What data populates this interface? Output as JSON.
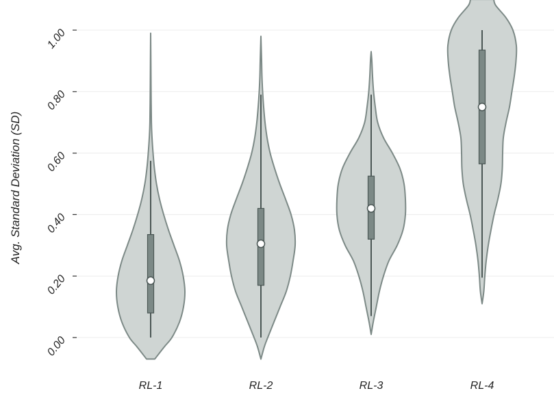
{
  "chart_data": {
    "type": "violin",
    "title": "",
    "xlabel": "",
    "ylabel": "Avg. Standard Deviation (SD)",
    "ylim": [
      0,
      1
    ],
    "yticks": [
      "0.00",
      "0.20",
      "0.40",
      "0.60",
      "0.80",
      "1.00"
    ],
    "ytick_values": [
      0,
      0.2,
      0.4,
      0.6,
      0.8,
      1.0
    ],
    "grid": true,
    "colors": {
      "violin_fill": "#cfd5d3",
      "violin_stroke": "#7c8986",
      "box_fill": "#7c8986",
      "box_stroke": "#4a5654",
      "whisker": "#4a5654",
      "median_fill": "#ffffff",
      "grid": "#ececec"
    },
    "categories": [
      "RL-1",
      "RL-2",
      "RL-3",
      "RL-4"
    ],
    "violins": [
      {
        "category": "RL-1",
        "min": 0.0,
        "q1": 0.08,
        "median": 0.185,
        "q3": 0.335,
        "max": 0.575,
        "density": [
          [
            -0.07,
            0.12
          ],
          [
            -0.03,
            0.4
          ],
          [
            0.0,
            0.62
          ],
          [
            0.05,
            0.84
          ],
          [
            0.1,
            0.96
          ],
          [
            0.15,
            1.0
          ],
          [
            0.2,
            0.95
          ],
          [
            0.25,
            0.84
          ],
          [
            0.3,
            0.68
          ],
          [
            0.35,
            0.52
          ],
          [
            0.4,
            0.38
          ],
          [
            0.45,
            0.26
          ],
          [
            0.5,
            0.17
          ],
          [
            0.55,
            0.11
          ],
          [
            0.6,
            0.07
          ],
          [
            0.65,
            0.04
          ],
          [
            0.7,
            0.022
          ],
          [
            0.8,
            0.012
          ],
          [
            0.9,
            0.006
          ],
          [
            0.99,
            0.0
          ]
        ]
      },
      {
        "category": "RL-2",
        "min": 0.0,
        "q1": 0.17,
        "median": 0.305,
        "q3": 0.42,
        "max": 0.79,
        "density": [
          [
            -0.07,
            0.0
          ],
          [
            -0.03,
            0.1
          ],
          [
            0.0,
            0.2
          ],
          [
            0.05,
            0.38
          ],
          [
            0.1,
            0.56
          ],
          [
            0.15,
            0.74
          ],
          [
            0.2,
            0.86
          ],
          [
            0.25,
            0.94
          ],
          [
            0.3,
            1.0
          ],
          [
            0.35,
            0.98
          ],
          [
            0.4,
            0.88
          ],
          [
            0.45,
            0.72
          ],
          [
            0.5,
            0.55
          ],
          [
            0.55,
            0.4
          ],
          [
            0.6,
            0.27
          ],
          [
            0.65,
            0.18
          ],
          [
            0.7,
            0.12
          ],
          [
            0.75,
            0.08
          ],
          [
            0.8,
            0.05
          ],
          [
            0.85,
            0.03
          ],
          [
            0.9,
            0.02
          ],
          [
            0.98,
            0.0
          ]
        ]
      },
      {
        "category": "RL-3",
        "min": 0.07,
        "q1": 0.32,
        "median": 0.42,
        "q3": 0.525,
        "max": 0.79,
        "density": [
          [
            0.01,
            0.0
          ],
          [
            0.05,
            0.06
          ],
          [
            0.1,
            0.15
          ],
          [
            0.15,
            0.24
          ],
          [
            0.2,
            0.36
          ],
          [
            0.25,
            0.52
          ],
          [
            0.3,
            0.76
          ],
          [
            0.35,
            0.93
          ],
          [
            0.4,
            1.0
          ],
          [
            0.45,
            1.0
          ],
          [
            0.5,
            0.96
          ],
          [
            0.55,
            0.84
          ],
          [
            0.6,
            0.62
          ],
          [
            0.65,
            0.36
          ],
          [
            0.7,
            0.19
          ],
          [
            0.75,
            0.12
          ],
          [
            0.8,
            0.07
          ],
          [
            0.85,
            0.04
          ],
          [
            0.9,
            0.02
          ],
          [
            0.93,
            0.0
          ]
        ]
      },
      {
        "category": "RL-4",
        "min": 0.195,
        "q1": 0.565,
        "median": 0.75,
        "q3": 0.935,
        "max": 1.0,
        "density": [
          [
            0.11,
            0.0
          ],
          [
            0.15,
            0.05
          ],
          [
            0.2,
            0.08
          ],
          [
            0.25,
            0.12
          ],
          [
            0.3,
            0.18
          ],
          [
            0.35,
            0.26
          ],
          [
            0.4,
            0.35
          ],
          [
            0.45,
            0.46
          ],
          [
            0.5,
            0.55
          ],
          [
            0.55,
            0.59
          ],
          [
            0.6,
            0.6
          ],
          [
            0.65,
            0.62
          ],
          [
            0.7,
            0.7
          ],
          [
            0.75,
            0.8
          ],
          [
            0.8,
            0.87
          ],
          [
            0.85,
            0.94
          ],
          [
            0.9,
            0.99
          ],
          [
            0.95,
            1.0
          ],
          [
            1.0,
            0.9
          ],
          [
            1.04,
            0.7
          ],
          [
            1.08,
            0.4
          ],
          [
            1.1,
            0.34
          ]
        ]
      }
    ]
  }
}
